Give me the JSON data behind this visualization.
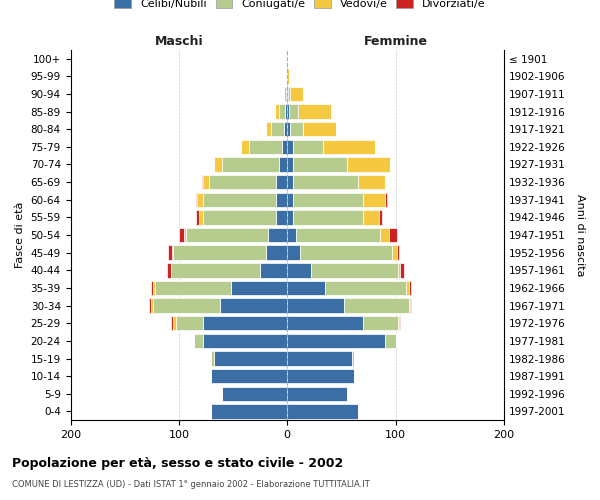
{
  "age_groups": [
    "100+",
    "95-99",
    "90-94",
    "85-89",
    "80-84",
    "75-79",
    "70-74",
    "65-69",
    "60-64",
    "55-59",
    "50-54",
    "45-49",
    "40-44",
    "35-39",
    "30-34",
    "25-29",
    "20-24",
    "15-19",
    "10-14",
    "5-9",
    "0-4"
  ],
  "birth_years": [
    "≤ 1901",
    "1902-1906",
    "1907-1911",
    "1912-1916",
    "1917-1921",
    "1922-1926",
    "1927-1931",
    "1932-1936",
    "1937-1941",
    "1942-1946",
    "1947-1951",
    "1952-1956",
    "1957-1961",
    "1962-1966",
    "1967-1971",
    "1972-1976",
    "1977-1981",
    "1982-1986",
    "1987-1991",
    "1992-1996",
    "1997-2001"
  ],
  "maschi_celibi": [
    0,
    0,
    1,
    2,
    3,
    5,
    8,
    10,
    10,
    10,
    18,
    20,
    25,
    52,
    62,
    78,
    78,
    68,
    70,
    60,
    70
  ],
  "maschi_coniugati": [
    0,
    0,
    2,
    6,
    12,
    30,
    52,
    62,
    68,
    68,
    75,
    85,
    82,
    70,
    62,
    25,
    8,
    2,
    0,
    0,
    0
  ],
  "maschi_vedovi": [
    0,
    0,
    0,
    3,
    5,
    8,
    8,
    6,
    5,
    3,
    2,
    1,
    0,
    2,
    2,
    2,
    0,
    0,
    0,
    0,
    0
  ],
  "maschi_divorziati": [
    0,
    0,
    0,
    0,
    0,
    0,
    0,
    1,
    1,
    3,
    5,
    4,
    4,
    2,
    2,
    2,
    0,
    0,
    0,
    0,
    0
  ],
  "femmine_nubili": [
    0,
    0,
    1,
    2,
    3,
    5,
    5,
    5,
    5,
    5,
    8,
    12,
    22,
    35,
    52,
    70,
    90,
    60,
    62,
    55,
    65
  ],
  "femmine_coniugate": [
    0,
    0,
    2,
    8,
    12,
    28,
    50,
    60,
    65,
    65,
    78,
    85,
    80,
    75,
    60,
    32,
    10,
    2,
    0,
    0,
    0
  ],
  "femmine_vedove": [
    0,
    2,
    12,
    30,
    30,
    48,
    40,
    25,
    20,
    15,
    8,
    4,
    2,
    2,
    1,
    1,
    0,
    0,
    0,
    0,
    0
  ],
  "femmine_divorziate": [
    0,
    0,
    0,
    0,
    0,
    0,
    0,
    0,
    2,
    2,
    7,
    2,
    4,
    2,
    1,
    1,
    0,
    0,
    0,
    0,
    0
  ],
  "color_celibi": "#3a6ea5",
  "color_coniugati": "#b5cc8e",
  "color_vedovi": "#f5c842",
  "color_divorziati": "#cc2222",
  "legend_labels": [
    "Celibi/Nubili",
    "Coniugati/e",
    "Vedovi/e",
    "Divorziati/e"
  ],
  "legend_colors": [
    "#3a6ea5",
    "#b5cc8e",
    "#f5c842",
    "#cc2222"
  ],
  "title": "Popolazione per età, sesso e stato civile - 2002",
  "subtitle": "COMUNE DI LESTIZZA (UD) - Dati ISTAT 1° gennaio 2002 - Elaborazione TUTTITALIA.IT",
  "label_maschi": "Maschi",
  "label_femmine": "Femmine",
  "ylabel_left": "Fasce di età",
  "ylabel_right": "Anni di nascita",
  "xlim": 200,
  "bg_color": "#ffffff",
  "grid_color": "#cccccc",
  "bar_edge": "#ffffff"
}
